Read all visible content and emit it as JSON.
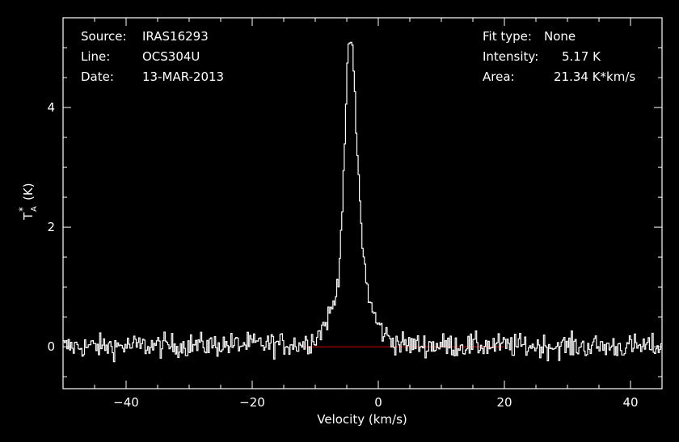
{
  "chart_data": {
    "type": "line",
    "title": "",
    "xlabel": "Velocity (km/s)",
    "ylabel": "T",
    "ylabel_sub": "A",
    "ylabel_sup": "*",
    "ylabel_unit": "(K)",
    "xlim": [
      -50,
      45
    ],
    "ylim": [
      -0.7,
      5.5
    ],
    "xticks": [
      -40,
      -20,
      0,
      20,
      40
    ],
    "yticks": [
      0,
      2,
      4
    ],
    "grid": false,
    "series": [
      {
        "color": "#ffffff",
        "x": [
          -50,
          -12,
          -10,
          -9,
          -8,
          -7,
          -6.5,
          -6,
          -5.5,
          -5,
          -4.8,
          -4.6,
          -4.4,
          -4.2,
          -4,
          -3.8,
          -3.5,
          -3,
          -2.5,
          -2,
          -1.5,
          -1,
          -0.5,
          0,
          1,
          2,
          3,
          4,
          45
        ],
        "y": [
          0,
          0.05,
          0.15,
          0.3,
          0.5,
          0.75,
          1.1,
          1.9,
          3.2,
          4.5,
          5.0,
          5.17,
          5.1,
          4.9,
          4.6,
          4.1,
          3.4,
          2.4,
          1.6,
          1.1,
          0.8,
          0.6,
          0.45,
          0.35,
          0.2,
          0.12,
          0.07,
          0.03,
          0
        ]
      }
    ],
    "baseline": {
      "color": "#c00000",
      "x": [
        -12,
        20
      ],
      "y": 0
    },
    "noise_rms": 0.1
  },
  "info_left": {
    "source_label": "Source:",
    "source_value": "IRAS16293",
    "line_label": "Line:",
    "line_value": "OCS304U",
    "date_label": "Date:",
    "date_value": "13-MAR-2013"
  },
  "info_right": {
    "fit_label": "Fit type:",
    "fit_value": "None",
    "intensity_label": "Intensity:",
    "intensity_value": "5.17 K",
    "area_label": "Area:",
    "area_value": "21.34 K*km/s"
  }
}
